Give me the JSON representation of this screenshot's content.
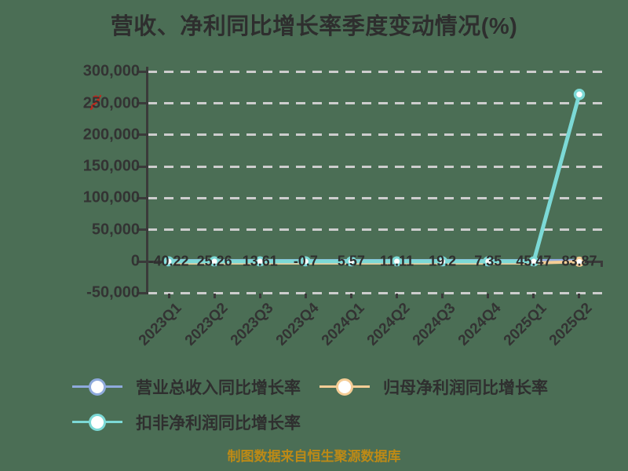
{
  "title": "营收、净利同比增长率季度变动情况(%)",
  "caption": "制图数据来自恒生聚源数据库",
  "colors": {
    "background": "#4B6E55",
    "title_text": "#2e2e2e",
    "axis_line": "#3a3a3a",
    "gridline": "#cdcdcd",
    "label_text": "#333333",
    "caption_text": "#bd8a16",
    "watermark_red": "#c2281c",
    "series_revenue": "#8FAADC",
    "series_net_profit": "#F5CD96",
    "series_non_gaap": "#7CD9D6"
  },
  "chart_data": {
    "type": "line",
    "title": "营收、净利同比增长率季度变动情况(%)",
    "categories": [
      "2023Q1",
      "2023Q2",
      "2023Q3",
      "2023Q4",
      "2024Q1",
      "2024Q2",
      "2024Q3",
      "2024Q4",
      "2025Q1",
      "2025Q2"
    ],
    "series": [
      {
        "name": "营业总收入同比增长率",
        "color": "#8FAADC",
        "values": [
          -40.22,
          25.26,
          13.61,
          -0.7,
          5.57,
          11.11,
          19.2,
          7.35,
          45.47,
          83.87
        ],
        "labels": [
          "-40.22",
          "25.26",
          "13.61",
          "-0.7",
          "5.57",
          "11.11",
          "19.2",
          "7.35",
          "45.47",
          "83.87"
        ],
        "labeled_on_chart": true
      },
      {
        "name": "归母净利润同比增长率",
        "color": "#F5CD96",
        "values": [
          0,
          0,
          0,
          0,
          0,
          0,
          0,
          0,
          0,
          2000
        ],
        "note": "values not labeled; indistinguishable from 0 at axis scale, final point marked with dot slightly above zero (estimated)"
      },
      {
        "name": "扣非净利润同比增长率",
        "color": "#7CD9D6",
        "values": [
          0,
          0,
          0,
          0,
          0,
          0,
          0,
          0,
          0,
          264000
        ],
        "note": "first 9 points ≈0 at axis scale; final spike value estimated from gridlines ≈264,000"
      }
    ],
    "yticks": {
      "values": [
        300000,
        250000,
        200000,
        150000,
        100000,
        50000,
        0,
        -50000
      ],
      "labels": [
        "300,000",
        "250,000",
        "200,000",
        "150,000",
        "100,000",
        "50,000",
        "0",
        "-50,000"
      ]
    },
    "ylim": [
      -50000,
      300000
    ],
    "xlabel": "",
    "ylabel": "",
    "grid": "horizontal dashed",
    "legend_position": "bottom-left",
    "x_label_rotation": 45
  },
  "legend": {
    "items": [
      {
        "label": "营业总收入同比增长率"
      },
      {
        "label": "归母净利润同比增长率"
      },
      {
        "label": "扣非净利润同比增长率"
      }
    ]
  }
}
